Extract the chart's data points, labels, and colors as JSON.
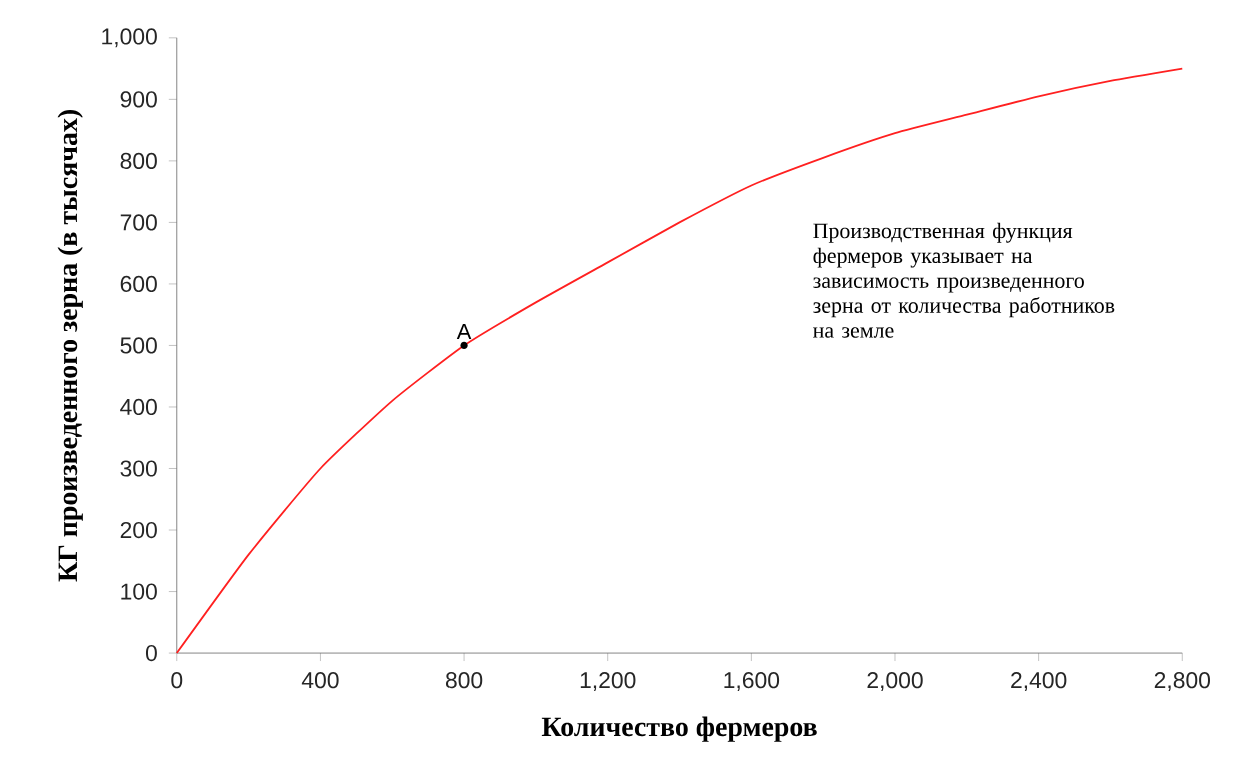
{
  "chart_data": {
    "type": "line",
    "xlabel": "Количество фермеров",
    "ylabel": "КГ произведенного зерна (в тысячах)",
    "x": [
      0,
      200,
      400,
      600,
      800,
      1000,
      1200,
      1400,
      1600,
      1800,
      2000,
      2200,
      2400,
      2600,
      2800
    ],
    "series": [
      {
        "color": "#ff2020",
        "values": [
          0,
          160,
          300,
          410,
          500,
          570,
          635,
          700,
          760,
          805,
          845,
          875,
          905,
          930,
          950
        ]
      }
    ],
    "xlim": [
      0,
      2800
    ],
    "ylim": [
      0,
      1000
    ],
    "xticks": [
      0,
      400,
      800,
      {
        "value": 1200,
        "label": "1,200"
      },
      {
        "value": 1600,
        "label": "1,600"
      },
      {
        "value": 2000,
        "label": "2,000"
      },
      {
        "value": 2400,
        "label": "2,400"
      },
      {
        "value": 2800,
        "label": "2,800"
      }
    ],
    "yticks": [
      0,
      100,
      200,
      300,
      400,
      500,
      600,
      700,
      800,
      900,
      {
        "value": 1000,
        "label": "1,000"
      }
    ],
    "annotations": [
      {
        "text": "A",
        "x": 800,
        "y": 500
      },
      "Производственная функция фермеров указывает на зависимость произведенного зерна от количества работников на земле"
    ]
  }
}
